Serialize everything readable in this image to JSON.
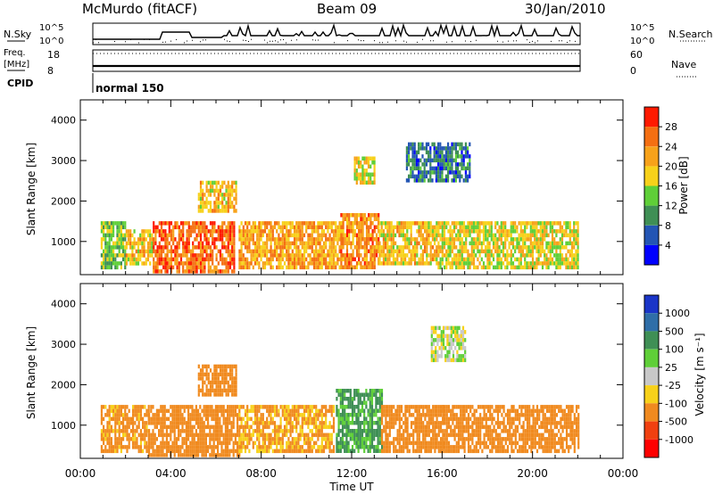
{
  "header": {
    "station": "McMurdo (fitACF)",
    "beam": "Beam 09",
    "date": "30/Jan/2010"
  },
  "sky_panel": {
    "left_label": "N.Sky",
    "right_label": "N.Search",
    "left_ticks": [
      "10^5",
      "10^0"
    ],
    "right_ticks": [
      "10^5",
      "10^0"
    ]
  },
  "freq_panel": {
    "left_label_line1": "Freq.",
    "left_label_line2": "[MHz]",
    "right_label": "Nave",
    "left_ticks": [
      "18",
      "8"
    ],
    "right_ticks": [
      "60",
      "0"
    ]
  },
  "cpid": {
    "label": "CPID",
    "mode": "normal 150"
  },
  "x_axis": {
    "label": "Time UT",
    "ticks": [
      "00:00",
      "04:00",
      "08:00",
      "12:00",
      "16:00",
      "20:00",
      "00:00"
    ]
  },
  "power_colorbar": {
    "label": "Power [dB]",
    "ticks": [
      "4",
      "8",
      "12",
      "16",
      "20",
      "24",
      "28"
    ],
    "colors": [
      "#0000ff",
      "#2355b4",
      "#3f8f55",
      "#5fcf38",
      "#f7d11a",
      "#f7a21a",
      "#f46f12",
      "#ff1a00"
    ]
  },
  "velocity_colorbar": {
    "label": "Velocity [m s⁻¹]",
    "ticks": [
      "1000",
      "500",
      "100",
      "25",
      "-25",
      "-100",
      "-500",
      "-1000"
    ],
    "colors": [
      "#1a35c8",
      "#2f6ea8",
      "#3f8f55",
      "#5fcf38",
      "#c8c8c8",
      "#f7d11a",
      "#f08a1f",
      "#f04010",
      "#ff0000"
    ]
  },
  "chart_data": [
    {
      "type": "heatmap",
      "title": "",
      "xlabel": "Time UT",
      "ylabel": "Slant Range [km]",
      "xlim": [
        0,
        24
      ],
      "ylim": [
        180,
        4500
      ],
      "yticks": [
        1000,
        2000,
        3000,
        4000
      ],
      "quantity": "Power [dB]",
      "colorbar_range": [
        0,
        32
      ],
      "echo_regions": [
        {
          "t_start": 0.9,
          "t_end": 2.0,
          "r_low": 400,
          "r_high": 1500,
          "typical_value": 14
        },
        {
          "t_start": 2.0,
          "t_end": 3.2,
          "r_low": 500,
          "r_high": 1300,
          "typical_value": 20
        },
        {
          "t_start": 3.2,
          "t_end": 6.8,
          "r_low": 250,
          "r_high": 1500,
          "typical_value": 26
        },
        {
          "t_start": 5.2,
          "t_end": 6.9,
          "r_low": 1800,
          "r_high": 2500,
          "typical_value": 20
        },
        {
          "t_start": 7.0,
          "t_end": 11.5,
          "r_low": 350,
          "r_high": 1500,
          "typical_value": 22
        },
        {
          "t_start": 11.5,
          "t_end": 13.2,
          "r_low": 400,
          "r_high": 1700,
          "typical_value": 24
        },
        {
          "t_start": 12.1,
          "t_end": 13.0,
          "r_low": 2500,
          "r_high": 3100,
          "typical_value": 18
        },
        {
          "t_start": 13.2,
          "t_end": 15.8,
          "r_low": 500,
          "r_high": 1500,
          "typical_value": 20
        },
        {
          "t_start": 14.4,
          "t_end": 17.2,
          "r_low": 2500,
          "r_high": 3450,
          "typical_value": 8
        },
        {
          "t_start": 15.8,
          "t_end": 22.0,
          "r_low": 400,
          "r_high": 1500,
          "typical_value": 18
        }
      ]
    },
    {
      "type": "heatmap",
      "title": "",
      "xlabel": "Time UT",
      "ylabel": "Slant Range [km]",
      "xlim": [
        0,
        24
      ],
      "ylim": [
        180,
        4500
      ],
      "yticks": [
        1000,
        2000,
        3000,
        4000
      ],
      "quantity": "Velocity [m s⁻¹]",
      "echo_regions": [
        {
          "t_start": 0.9,
          "t_end": 3.0,
          "r_low": 400,
          "r_high": 1500,
          "typical_value": -150
        },
        {
          "t_start": 3.0,
          "t_end": 7.0,
          "r_low": 300,
          "r_high": 1500,
          "typical_value": -200
        },
        {
          "t_start": 5.2,
          "t_end": 6.9,
          "r_low": 1800,
          "r_high": 2500,
          "typical_value": -300
        },
        {
          "t_start": 7.0,
          "t_end": 11.2,
          "r_low": 350,
          "r_high": 1500,
          "typical_value": -120
        },
        {
          "t_start": 11.3,
          "t_end": 13.3,
          "r_low": 400,
          "r_high": 1900,
          "typical_value": 120
        },
        {
          "t_start": 13.3,
          "t_end": 16.0,
          "r_low": 400,
          "r_high": 1500,
          "typical_value": -180
        },
        {
          "t_start": 15.5,
          "t_end": 17.0,
          "r_low": 2600,
          "r_high": 3450,
          "typical_value": 10
        },
        {
          "t_start": 16.0,
          "t_end": 22.0,
          "r_low": 400,
          "r_high": 1500,
          "typical_value": -250
        }
      ]
    }
  ]
}
